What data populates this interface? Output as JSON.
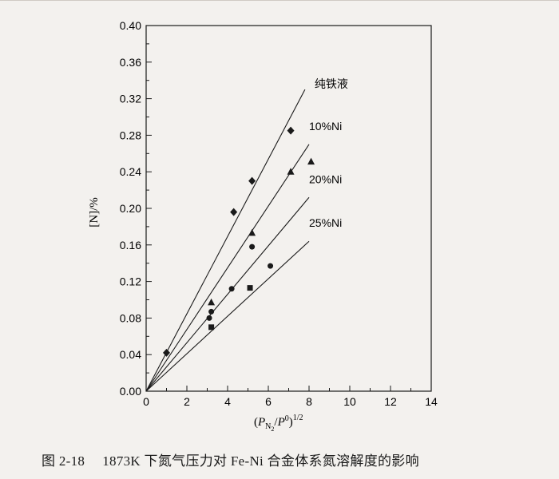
{
  "chart_data": {
    "type": "scatter",
    "xlabel_parts": {
      "open": "(",
      "P": "P",
      "sub": "N",
      "subsub": "2",
      "slash": "/",
      "P0": "P",
      "sup0": "0",
      "close": ")",
      "exp": "1/2"
    },
    "ylabel": "[N]/%",
    "xlim": [
      0,
      14
    ],
    "ylim": [
      0,
      0.4
    ],
    "x_ticks": [
      "0",
      "2",
      "4",
      "6",
      "8",
      "10",
      "12",
      "14"
    ],
    "y_ticks": [
      "0.00",
      "0.04",
      "0.08",
      "0.12",
      "0.16",
      "0.20",
      "0.24",
      "0.28",
      "0.32",
      "0.36",
      "0.40"
    ],
    "lines": [
      {
        "label": "纯铁液",
        "x": [
          0,
          7.8
        ],
        "y": [
          0,
          0.33
        ]
      },
      {
        "label": "10%Ni",
        "x": [
          0,
          8.0
        ],
        "y": [
          0,
          0.27
        ]
      },
      {
        "label": "20%Ni",
        "x": [
          0,
          8.0
        ],
        "y": [
          0,
          0.212
        ]
      },
      {
        "label": "25%Ni",
        "x": [
          0,
          8.0
        ],
        "y": [
          0,
          0.164
        ]
      }
    ],
    "series": [
      {
        "marker": "diamond",
        "x": [
          1.0,
          4.3,
          5.2,
          7.1
        ],
        "y": [
          0.042,
          0.196,
          0.23,
          0.285
        ]
      },
      {
        "marker": "triangle",
        "x": [
          3.2,
          5.2,
          7.1,
          8.1
        ],
        "y": [
          0.097,
          0.173,
          0.24,
          0.251
        ]
      },
      {
        "marker": "circle",
        "x": [
          3.1,
          3.2,
          4.2,
          5.2,
          6.1
        ],
        "y": [
          0.08,
          0.087,
          0.112,
          0.158,
          0.137
        ]
      },
      {
        "marker": "square",
        "x": [
          3.2,
          5.1
        ],
        "y": [
          0.07,
          0.113
        ]
      }
    ]
  },
  "caption": {
    "number": "图 2-18",
    "text": "1873K 下氮气压力对 Fe-Ni 合金体系氮溶解度的影响"
  }
}
